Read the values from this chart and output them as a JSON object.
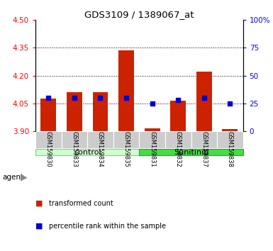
{
  "title": "GDS3109 / 1389067_at",
  "samples": [
    "GSM159830",
    "GSM159833",
    "GSM159834",
    "GSM159835",
    "GSM159831",
    "GSM159832",
    "GSM159837",
    "GSM159838"
  ],
  "bar_values": [
    4.075,
    4.11,
    4.11,
    4.335,
    3.915,
    4.065,
    4.22,
    3.91
  ],
  "percentile_values": [
    30,
    30,
    30,
    30,
    25,
    28,
    30,
    25
  ],
  "ymin": 3.9,
  "ymax": 4.5,
  "y2min": 0,
  "y2max": 100,
  "yticks": [
    3.9,
    4.05,
    4.2,
    4.35,
    4.5
  ],
  "y2ticks": [
    0,
    25,
    50,
    75,
    100
  ],
  "y2tick_labels": [
    "0",
    "25",
    "50",
    "75",
    "100%"
  ],
  "bar_color": "#cc2200",
  "dot_color": "#0000cc",
  "bar_width": 0.6,
  "control_color": "#ccffcc",
  "sunitinib_color": "#44dd44",
  "control_border": "#88cc88",
  "sunitinib_border": "#22aa22",
  "sample_box_color": "#cccccc",
  "grid_yticks": [
    4.05,
    4.2,
    4.35
  ],
  "legend_items": [
    {
      "color": "#cc2200",
      "label": "transformed count"
    },
    {
      "color": "#0000cc",
      "label": "percentile rank within the sample"
    }
  ]
}
